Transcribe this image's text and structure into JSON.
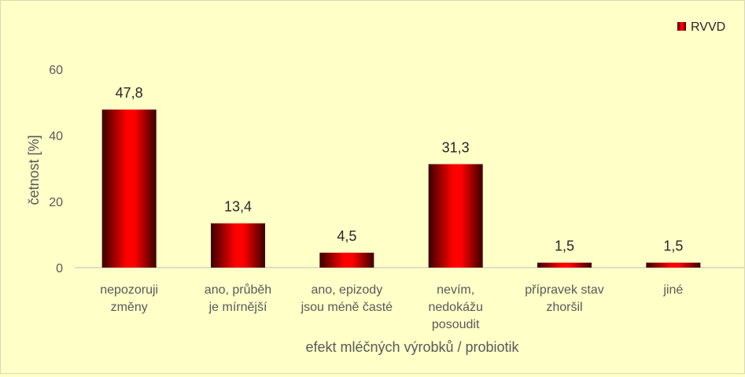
{
  "chart_data": {
    "type": "bar",
    "categories": [
      [
        "nepozoruji",
        "změny"
      ],
      [
        "ano, průběh",
        "je mírnější"
      ],
      [
        "ano, epizody",
        "jsou méně časté"
      ],
      [
        "nevím,",
        "nedokážu",
        "posoudit"
      ],
      [
        "přípravek stav",
        "zhoršil"
      ],
      [
        "jiné"
      ]
    ],
    "series": [
      {
        "name": "RVVD",
        "values": [
          47.8,
          13.4,
          4.5,
          31.3,
          1.5,
          1.5
        ],
        "labels": [
          "47,8",
          "13,4",
          "4,5",
          "31,3",
          "1,5",
          "1,5"
        ]
      }
    ],
    "yticks": [
      "0",
      "20",
      "40",
      "60"
    ],
    "ylim": [
      0,
      60
    ],
    "xlabel": "efekt mléčných výrobků / probiotik",
    "ylabel": "četnost [%]",
    "grid": false,
    "legend_position": "top-right",
    "colors": {
      "background": "#ffffc8",
      "bar_dark": "#3a0000",
      "bar_bright": "#ff0000",
      "axis": "#bfbfbf"
    }
  }
}
